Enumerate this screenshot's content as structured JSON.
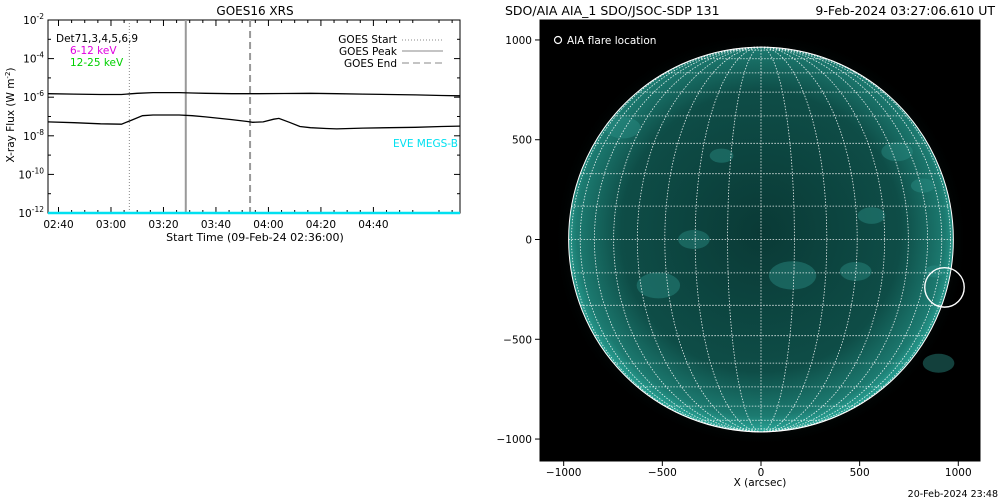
{
  "chart_data": [
    {
      "type": "line",
      "title": "GOES16 XRS",
      "xlabel": "Start Time (09-Feb-24 02:36:00)",
      "ylabel_main": "X-ray Flux (W m",
      "ylabel_unit_exp": "-2",
      "y_log_scale": true,
      "x_range_minutes_after_02_36": [
        0,
        157
      ],
      "ylim_exponent": [
        -12,
        -2
      ],
      "x_ticks": [
        {
          "label": "02:40",
          "minutes": 4
        },
        {
          "label": "03:00",
          "minutes": 24
        },
        {
          "label": "03:20",
          "minutes": 44
        },
        {
          "label": "03:40",
          "minutes": 64
        },
        {
          "label": "04:00",
          "minutes": 84
        },
        {
          "label": "04:20",
          "minutes": 104
        },
        {
          "label": "04:40",
          "minutes": 124
        }
      ],
      "y_ticks": [
        {
          "base": "10",
          "exp": "-2",
          "value": -2
        },
        {
          "base": "10",
          "exp": "-4",
          "value": -4
        },
        {
          "base": "10",
          "exp": "-6",
          "value": -6
        },
        {
          "base": "10",
          "exp": "-8",
          "value": -8
        },
        {
          "base": "10",
          "exp": "-10",
          "value": -10
        },
        {
          "base": "10",
          "exp": "-12",
          "value": -12
        }
      ],
      "detector_text": "Det71,3,4,5,6,9",
      "legend_left": [
        {
          "name": "6-12 keV",
          "color": "#e000e0"
        },
        {
          "name": "12-25 keV",
          "color": "#00d000"
        }
      ],
      "legend_right": [
        {
          "name": "GOES Start",
          "style": "dotted"
        },
        {
          "name": "GOES Peak",
          "style": "solid"
        },
        {
          "name": "GOES End",
          "style": "dashed"
        }
      ],
      "eve_label": "EVE MEGS-B",
      "eve_color": "#00e0f0",
      "markers_minutes": {
        "start": 31,
        "peak": 52.5,
        "end": 77
      },
      "series": [
        {
          "name": "long",
          "color": "#000000",
          "x": [
            0,
            10,
            20,
            28,
            34,
            40,
            50,
            55,
            60,
            70,
            80,
            90,
            100,
            110,
            120,
            130,
            140,
            150,
            157
          ],
          "log_y": [
            -5.82,
            -5.84,
            -5.86,
            -5.86,
            -5.8,
            -5.76,
            -5.76,
            -5.78,
            -5.8,
            -5.82,
            -5.82,
            -5.81,
            -5.8,
            -5.82,
            -5.84,
            -5.86,
            -5.88,
            -5.91,
            -5.93
          ]
        },
        {
          "name": "short",
          "color": "#000000",
          "x": [
            0,
            10,
            20,
            28,
            32,
            36,
            40,
            50,
            55,
            60,
            70,
            76,
            78,
            82,
            86,
            88,
            92,
            96,
            100,
            106,
            110,
            120,
            130,
            140,
            150,
            157
          ],
          "log_y": [
            -7.28,
            -7.32,
            -7.38,
            -7.4,
            -7.18,
            -6.96,
            -6.92,
            -6.92,
            -6.96,
            -7.02,
            -7.16,
            -7.26,
            -7.3,
            -7.28,
            -7.14,
            -7.1,
            -7.3,
            -7.52,
            -7.58,
            -7.62,
            -7.64,
            -7.6,
            -7.58,
            -7.56,
            -7.52,
            -7.5
          ]
        },
        {
          "name": "EVE MEGS-B",
          "color": "#00e0f0",
          "x": [
            0,
            157
          ],
          "log_y": [
            -12.0,
            -12.0
          ]
        }
      ]
    },
    {
      "type": "map",
      "title_left": "SDO/AIA AIA_1 SDO/JSOC-SDP 131",
      "title_right": "9-Feb-2024 03:27:06.610 UT",
      "xlabel": "X (arcsec)",
      "x_range": [
        -1120,
        1110
      ],
      "y_range": [
        -1110,
        1100
      ],
      "x_ticks": [
        -1000,
        -500,
        0,
        500,
        1000
      ],
      "y_ticks": [
        1000,
        500,
        0,
        -500,
        -1000
      ],
      "x_tick_labels": [
        "−1000",
        "−500",
        "0",
        "500",
        "1000"
      ],
      "y_tick_labels": [
        "1000",
        "500",
        "0",
        "−500",
        "−1000"
      ],
      "solar_radius_arcsec": 975,
      "legend_label": "AIA flare location",
      "flare_location_arcsec": {
        "x": 930,
        "y": -240,
        "radius": 100
      },
      "disk_color": "#0c4a44",
      "grid_color": "#ffffff",
      "timestamp_footer": "20-Feb-2024 23:48"
    }
  ]
}
